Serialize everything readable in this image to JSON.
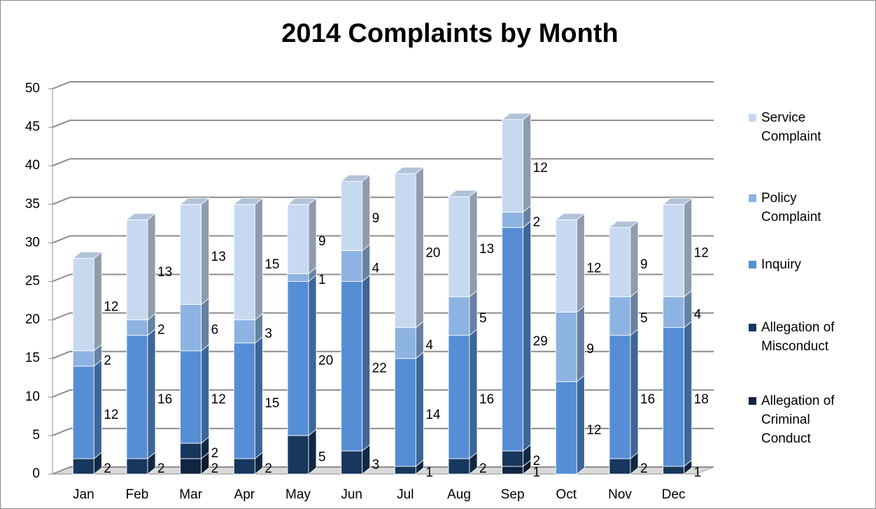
{
  "chart_data": {
    "type": "bar",
    "stacked": true,
    "title": "2014 Complaints by Month",
    "categories": [
      "Jan",
      "Feb",
      "Mar",
      "Apr",
      "May",
      "Jun",
      "Jul",
      "Aug",
      "Sep",
      "Oct",
      "Nov",
      "Dec"
    ],
    "series": [
      {
        "name": "Allegation of Criminal Conduct",
        "color": "#10253f",
        "values": [
          null,
          null,
          2,
          null,
          null,
          null,
          null,
          null,
          1,
          null,
          null,
          null
        ]
      },
      {
        "name": "Allegation of Misconduct",
        "color": "#17375e",
        "values": [
          2,
          2,
          2,
          2,
          5,
          3,
          1,
          2,
          2,
          null,
          2,
          1
        ]
      },
      {
        "name": "Inquiry",
        "color": "#558ed5",
        "values": [
          12,
          16,
          12,
          15,
          20,
          22,
          14,
          16,
          29,
          12,
          16,
          18
        ]
      },
      {
        "name": "Policy Complaint",
        "color": "#8db3e2",
        "values": [
          2,
          2,
          6,
          3,
          1,
          4,
          4,
          5,
          2,
          9,
          5,
          4
        ]
      },
      {
        "name": "Service Complaint",
        "color": "#c6d9f1",
        "values": [
          12,
          13,
          13,
          15,
          9,
          9,
          20,
          13,
          12,
          12,
          9,
          12
        ]
      }
    ],
    "ylim": [
      0,
      50
    ],
    "yticks": [
      0,
      5,
      10,
      15,
      20,
      25,
      30,
      35,
      40,
      45,
      50
    ],
    "grid": true,
    "legend": "right"
  }
}
